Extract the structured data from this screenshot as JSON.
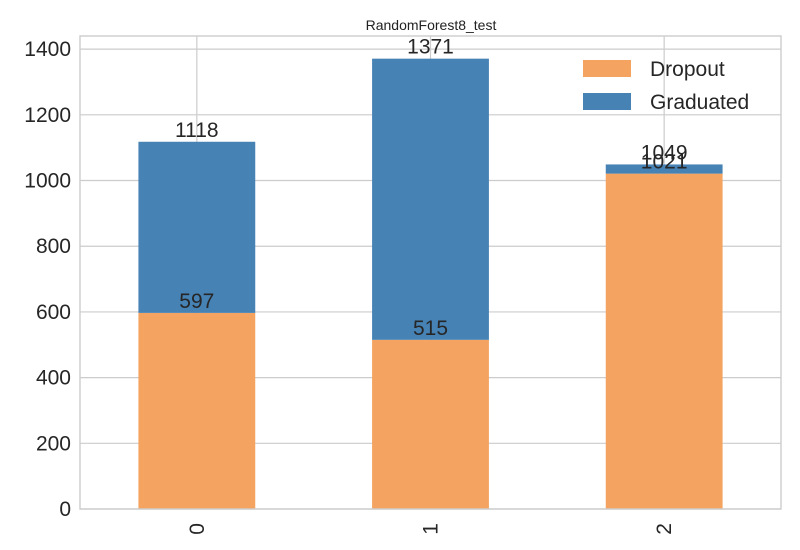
{
  "chart_data": {
    "type": "bar",
    "stacked": true,
    "title": "RandomForest8_test",
    "xlabel": "",
    "ylabel": "",
    "categories": [
      "0",
      "1",
      "2"
    ],
    "series": [
      {
        "name": "Dropout",
        "values": [
          597,
          515,
          1021
        ],
        "color": "#f4a460"
      },
      {
        "name": "Graduated",
        "values": [
          521,
          856,
          28
        ],
        "color": "#4682b4"
      }
    ],
    "segment_labels": {
      "Dropout": [
        "597",
        "515",
        "1021"
      ],
      "Graduated": [
        "1118",
        "1371",
        "1049"
      ]
    },
    "ylim": [
      0,
      1440
    ],
    "yticks": [
      0,
      200,
      400,
      600,
      800,
      1000,
      1200,
      1400
    ],
    "grid": true,
    "legend_position": "top-right",
    "x_tick_rotation": 90
  }
}
